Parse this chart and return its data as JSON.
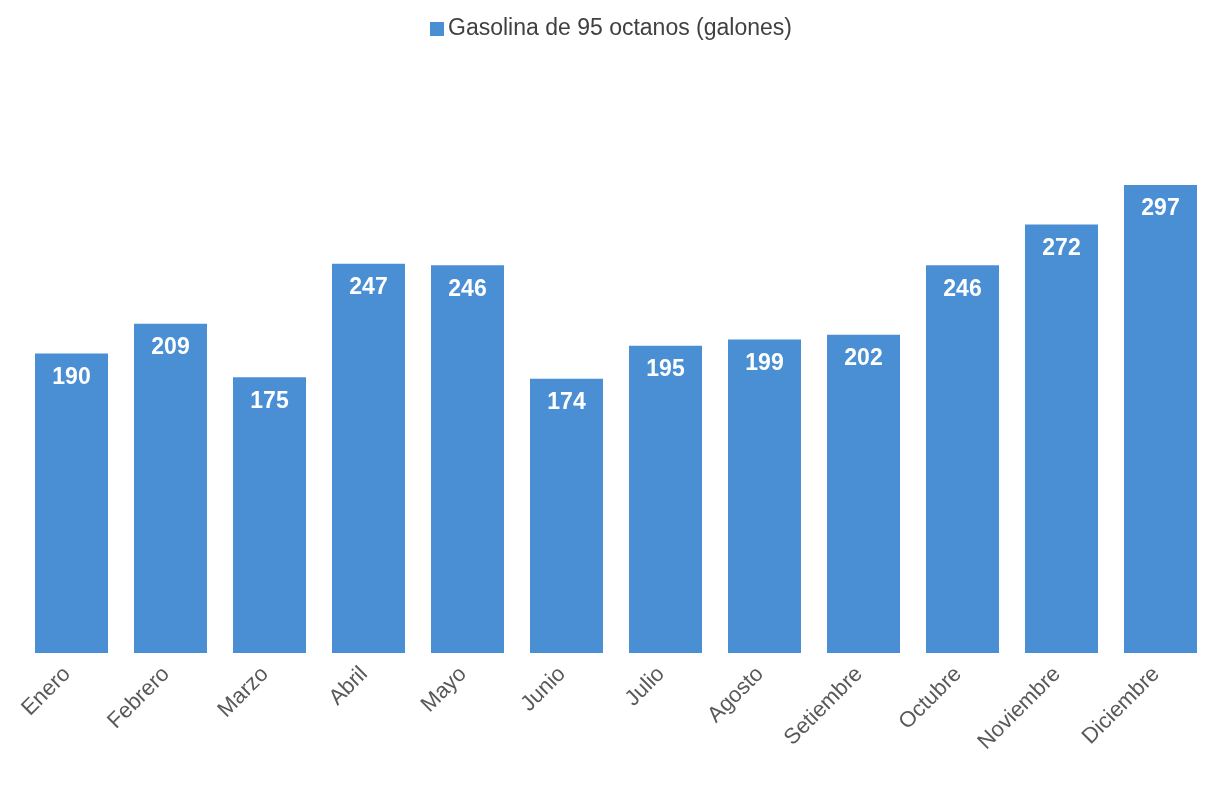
{
  "chart_data": {
    "type": "bar",
    "categories": [
      "Enero",
      "Febrero",
      "Marzo",
      "Abril",
      "Mayo",
      "Junio",
      "Julio",
      "Agosto",
      "Setiembre",
      "Octubre",
      "Noviembre",
      "Diciembre"
    ],
    "series": [
      {
        "name": "Gasolina de 95 octanos (galones)",
        "color": "#4a8fd4",
        "values": [
          190,
          209,
          175,
          247,
          246,
          174,
          195,
          199,
          202,
          246,
          272,
          297
        ]
      }
    ],
    "data_labels": true,
    "legend": "top",
    "grid": false,
    "tick_labels": "x"
  }
}
